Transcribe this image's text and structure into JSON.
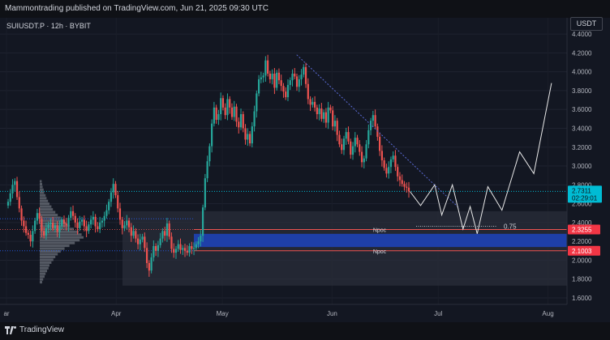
{
  "header": {
    "published": "Mammontrading published on TradingView.com, Jun 21, 2025 09:30 UTC"
  },
  "chart_title": "SUIUSDT.P · 12h · BYBIT",
  "currency_button": "USDT",
  "footer": {
    "brand": "TradingView"
  },
  "colors": {
    "background": "#131722",
    "up": "#26a69a",
    "down": "#ef5350",
    "zone": "#2a2e39",
    "blue_zone": "#1e3fa8",
    "last_price_badge": "#00bcd4",
    "level_badge": "#f23645"
  },
  "chart_data": {
    "type": "candlestick",
    "symbol": "SUIUSDT.P",
    "interval": "12h",
    "exchange": "BYBIT",
    "x_tick_labels": [
      "ar",
      "Apr",
      "May",
      "Jun",
      "Jul",
      "Aug"
    ],
    "y_ticks": [
      1.6,
      1.8,
      2.0,
      2.2,
      2.4,
      2.6,
      2.8,
      3.0,
      3.2,
      3.4,
      3.6,
      3.8,
      4.0,
      4.2,
      4.4
    ],
    "y_tick_labels": [
      "1.6000",
      "1.8000",
      "2.0000",
      "2.2000",
      "2.4000",
      "2.6000",
      "2.8000",
      "3.0000",
      "3.2000",
      "3.4000",
      "3.6000",
      "3.8000",
      "4.0000",
      "4.2000",
      "4.4000"
    ],
    "ylim": [
      1.6,
      4.45
    ],
    "x_dates": [
      "2025-03-01",
      "2025-04-01",
      "2025-05-01",
      "2025-06-01",
      "2025-07-01",
      "2025-08-01"
    ],
    "closes": [
      2.62,
      2.71,
      2.8,
      2.84,
      2.67,
      2.55,
      2.42,
      2.36,
      2.29,
      2.27,
      2.2,
      2.31,
      2.42,
      2.5,
      2.44,
      2.31,
      2.26,
      2.34,
      2.38,
      2.4,
      2.34,
      2.37,
      2.3,
      2.36,
      2.43,
      2.39,
      2.37,
      2.45,
      2.52,
      2.47,
      2.4,
      2.34,
      2.41,
      2.43,
      2.36,
      2.31,
      2.38,
      2.43,
      2.46,
      2.36,
      2.33,
      2.4,
      2.42,
      2.47,
      2.53,
      2.62,
      2.72,
      2.81,
      2.69,
      2.55,
      2.43,
      2.34,
      2.37,
      2.42,
      2.35,
      2.26,
      2.31,
      2.23,
      2.17,
      2.22,
      2.25,
      2.13,
      1.97,
      1.89,
      2.03,
      2.15,
      2.1,
      2.16,
      2.23,
      2.31,
      2.26,
      2.39,
      2.25,
      2.12,
      2.08,
      2.12,
      2.17,
      2.11,
      2.13,
      2.1,
      2.08,
      2.15,
      2.12,
      2.13,
      2.17,
      2.2,
      2.26,
      2.56,
      2.87,
      3.05,
      3.21,
      3.45,
      3.62,
      3.49,
      3.55,
      3.72,
      3.62,
      3.54,
      3.71,
      3.62,
      3.52,
      3.63,
      3.47,
      3.41,
      3.55,
      3.4,
      3.28,
      3.34,
      3.24,
      3.42,
      3.58,
      3.77,
      3.92,
      3.94,
      3.96,
      4.12,
      3.98,
      3.92,
      3.98,
      3.83,
      3.99,
      3.91,
      3.85,
      3.79,
      3.73,
      3.86,
      3.91,
      3.98,
      3.95,
      3.84,
      3.92,
      3.97,
      4.05,
      3.87,
      3.71,
      3.65,
      3.68,
      3.62,
      3.55,
      3.61,
      3.5,
      3.57,
      3.46,
      3.62,
      3.59,
      3.42,
      3.48,
      3.33,
      3.23,
      3.17,
      3.29,
      3.36,
      3.26,
      3.12,
      3.21,
      3.3,
      3.23,
      3.15,
      3.04,
      3.08,
      3.23,
      3.38,
      3.48,
      3.54,
      3.42,
      3.31,
      3.16,
      3.06,
      2.98,
      2.92,
      2.99,
      3.07,
      3.11,
      2.99,
      2.89,
      2.85,
      2.81,
      2.78,
      2.77,
      2.73
    ],
    "last_price": 2.7311,
    "countdown": "02:29:01",
    "levels": [
      {
        "label": "Npoc",
        "value": 2.3255
      },
      {
        "label": "Npoc",
        "value": 2.1003
      }
    ],
    "fib_label": "0.75",
    "fib_value": 2.36,
    "zones": [
      {
        "name": "range",
        "top": 2.52,
        "bottom": 1.73
      },
      {
        "name": "blue-zone",
        "top": 2.28,
        "bottom": 2.14
      }
    ],
    "trendline": {
      "from": {
        "date": "2025-05-22",
        "price": 4.18
      },
      "to": {
        "date": "2025-07-07",
        "price": 2.55
      }
    },
    "projection": [
      {
        "date": "2025-06-23",
        "price": 2.73
      },
      {
        "date": "2025-06-26",
        "price": 2.58
      },
      {
        "date": "2025-06-30",
        "price": 2.8
      },
      {
        "date": "2025-07-02",
        "price": 2.48
      },
      {
        "date": "2025-07-05",
        "price": 2.8
      },
      {
        "date": "2025-07-08",
        "price": 2.33
      },
      {
        "date": "2025-07-10",
        "price": 2.57
      },
      {
        "date": "2025-07-12",
        "price": 2.28
      },
      {
        "date": "2025-07-15",
        "price": 2.78
      },
      {
        "date": "2025-07-19",
        "price": 2.53
      },
      {
        "date": "2025-07-24",
        "price": 3.15
      },
      {
        "date": "2025-07-28",
        "price": 2.92
      },
      {
        "date": "2025-08-02",
        "price": 3.88
      }
    ],
    "volume_profile": [
      0.04,
      0.05,
      0.06,
      0.08,
      0.09,
      0.12,
      0.14,
      0.17,
      0.2,
      0.24,
      0.27,
      0.32,
      0.37,
      0.43,
      0.49,
      0.55,
      0.62,
      0.7,
      0.8,
      0.86,
      0.9,
      0.82,
      0.72,
      0.61,
      0.51,
      0.43,
      0.37,
      0.32,
      0.28,
      0.24,
      0.2,
      0.18,
      0.15,
      0.12,
      0.1,
      0.07,
      0.05
    ]
  }
}
